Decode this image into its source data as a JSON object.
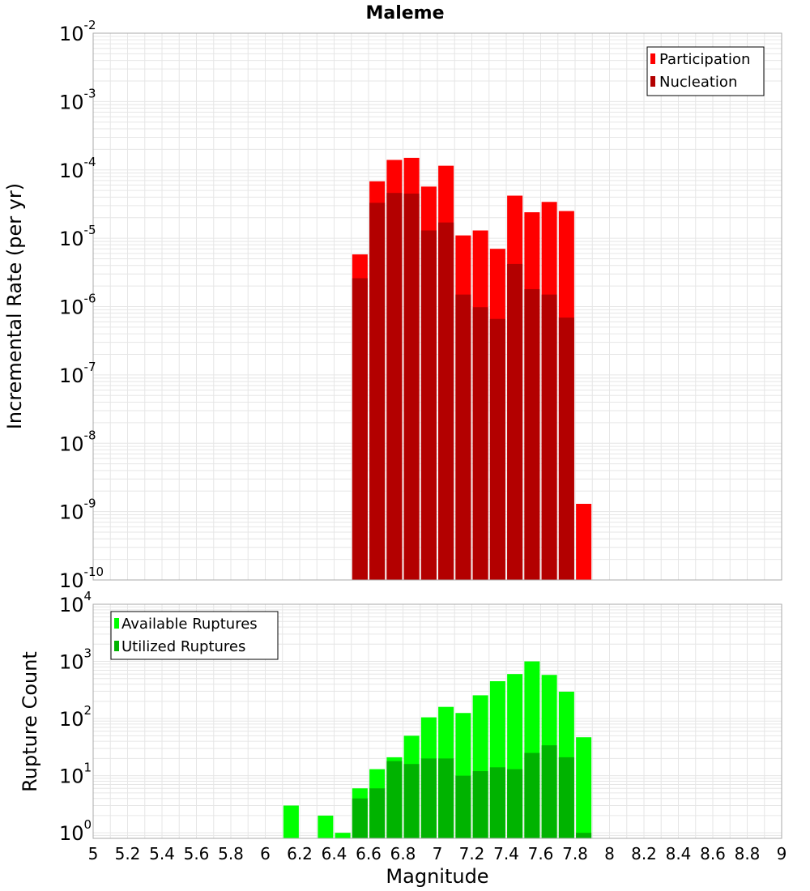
{
  "chart_data": [
    {
      "type": "bar",
      "title": "Maleme",
      "xlabel": "",
      "ylabel": "Incremental Rate (per yr)",
      "yscale": "log",
      "ylim": [
        1e-10,
        0.01
      ],
      "xlim": [
        5,
        9
      ],
      "grid": true,
      "legend_position": "top-right",
      "x": [
        6.55,
        6.65,
        6.75,
        6.85,
        6.95,
        7.05,
        7.15,
        7.25,
        7.35,
        7.45,
        7.55,
        7.65,
        7.75,
        7.85
      ],
      "series": [
        {
          "name": "Participation",
          "color": "#ff0000",
          "values": [
            5.8e-06,
            6.8e-05,
            0.00014,
            0.00015,
            5.7e-05,
            0.000115,
            1.1e-05,
            1.3e-05,
            7e-06,
            4.2e-05,
            2.4e-05,
            3.4e-05,
            2.5e-05,
            1.3e-09
          ]
        },
        {
          "name": "Nucleation",
          "color": "#b30000",
          "values": [
            2.6e-06,
            3.3e-05,
            4.6e-05,
            4.5e-05,
            1.3e-05,
            1.7e-05,
            1.5e-06,
            9.8e-07,
            6.6e-07,
            4.2e-06,
            1.8e-06,
            1.5e-06,
            6.9e-07,
            null
          ]
        }
      ]
    },
    {
      "type": "bar",
      "title": "",
      "xlabel": "Magnitude",
      "ylabel": "Rupture Count",
      "yscale": "log",
      "ylim": [
        0.8,
        10000
      ],
      "xlim": [
        5,
        9
      ],
      "grid": true,
      "legend_position": "top-left",
      "x": [
        6.15,
        6.35,
        6.45,
        6.55,
        6.65,
        6.75,
        6.85,
        6.95,
        7.05,
        7.15,
        7.25,
        7.35,
        7.45,
        7.55,
        7.65,
        7.75,
        7.85
      ],
      "series": [
        {
          "name": "Available Ruptures",
          "color": "#00ff00",
          "values": [
            3,
            2,
            1,
            6,
            13,
            21,
            50,
            105,
            160,
            125,
            255,
            450,
            600,
            1000,
            580,
            295,
            47
          ]
        },
        {
          "name": "Utilized Ruptures",
          "color": "#00b300",
          "values": [
            null,
            null,
            null,
            4,
            6,
            18,
            16,
            20,
            20,
            10,
            12,
            14,
            13,
            25,
            34,
            21,
            1
          ]
        }
      ]
    }
  ],
  "x_ticks": [
    "5",
    "5.2",
    "5.4",
    "5.6",
    "5.8",
    "6",
    "6.2",
    "6.4",
    "6.6",
    "6.8",
    "7",
    "7.2",
    "7.4",
    "7.6",
    "7.8",
    "8",
    "8.2",
    "8.4",
    "8.6",
    "8.8",
    "9"
  ],
  "top_y_ticks": [
    {
      "base": "10",
      "exp": "-10"
    },
    {
      "base": "10",
      "exp": "-9"
    },
    {
      "base": "10",
      "exp": "-8"
    },
    {
      "base": "10",
      "exp": "-7"
    },
    {
      "base": "10",
      "exp": "-6"
    },
    {
      "base": "10",
      "exp": "-5"
    },
    {
      "base": "10",
      "exp": "-4"
    },
    {
      "base": "10",
      "exp": "-3"
    },
    {
      "base": "10",
      "exp": "-2"
    }
  ],
  "bottom_y_ticks": [
    {
      "base": "10",
      "exp": "0"
    },
    {
      "base": "10",
      "exp": "1"
    },
    {
      "base": "10",
      "exp": "2"
    },
    {
      "base": "10",
      "exp": "3"
    },
    {
      "base": "10",
      "exp": "4"
    }
  ],
  "colors": {
    "grid": "#e6e6e6",
    "frame": "#aaaaaa",
    "text": "#000000"
  }
}
